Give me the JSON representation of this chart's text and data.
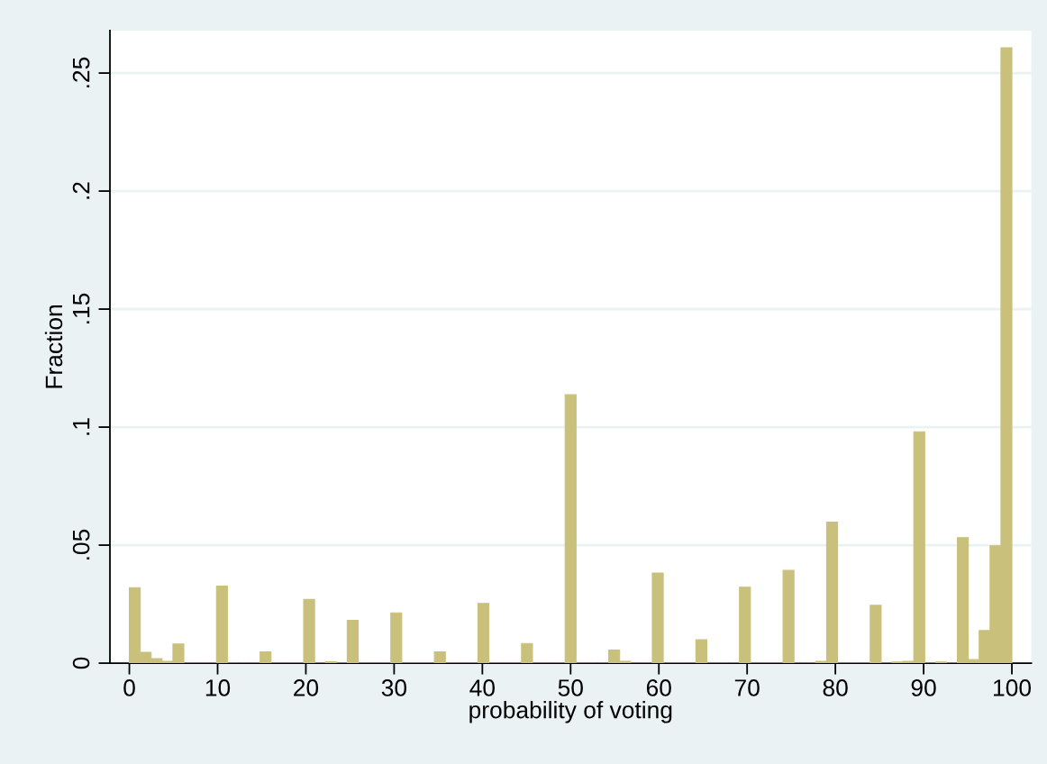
{
  "chart_data": {
    "type": "histogram",
    "xlabel": "probability of voting",
    "ylabel": "Fraction",
    "bins": [
      0,
      1.2345679,
      2.4691358,
      3.7037037,
      4.9382716,
      6.1728395,
      7.4074074,
      8.6419753,
      9.8765432,
      11.1111111,
      12.345679,
      13.5802469,
      14.8148148,
      16.0493827,
      17.2839506,
      18.5185185,
      19.7530864,
      20.9876543,
      22.2222222,
      23.4567901,
      24.691358,
      25.9259259,
      27.1604938,
      28.3950617,
      29.6296296,
      30.8641975,
      32.0987654,
      33.3333333,
      34.5679012,
      35.8024691,
      37.037037,
      38.2716049,
      39.5061728,
      40.7407407,
      41.9753086,
      43.2098765,
      44.4444444,
      45.6790123,
      46.9135802,
      48.1481481,
      49.382716,
      50.617284,
      51.8518519,
      53.0864198,
      54.3209877,
      55.5555556,
      56.7901235,
      58.0246914,
      59.2592593,
      60.4938272,
      61.7283951,
      62.962963,
      64.1975309,
      65.4320988,
      66.6666667,
      67.9012346,
      69.1358025,
      70.3703704,
      71.6049383,
      72.8395062,
      74.0740741,
      75.308642,
      76.5432099,
      77.7777778,
      79.0123457,
      80.2469136,
      81.4814815,
      82.7160494,
      83.9506173,
      85.1851852,
      86.4197531,
      87.654321,
      88.8888889,
      90.1234568,
      91.3580247,
      92.5925926,
      93.8271605,
      95.0617284,
      96.2962963,
      97.5308642,
      98.7654321,
      100
    ],
    "values": [
      0.032,
      0.0046,
      0.0019,
      0.0008,
      0.0081,
      0,
      0,
      0,
      0.0326,
      0,
      0,
      0,
      0.0048,
      0,
      0,
      0,
      0.027,
      0,
      0.0006,
      0,
      0.0181,
      0,
      0,
      0,
      0.0213,
      0,
      0,
      0,
      0.0048,
      0,
      0,
      0,
      0.0253,
      0,
      0,
      0,
      0.0083,
      0,
      0,
      0,
      0.1137,
      0,
      0,
      0,
      0.0055,
      0.0008,
      0,
      0,
      0.0382,
      0,
      0,
      0,
      0.0099,
      0,
      0,
      0,
      0.0322,
      0,
      0,
      0,
      0.0393,
      0,
      0,
      0.0008,
      0.0597,
      0,
      0,
      0,
      0.0245,
      0,
      0.0005,
      0.0008,
      0.098,
      0,
      0.0005,
      0,
      0.0532,
      0.0015,
      0.0138,
      0.0497,
      0.2607
    ],
    "color": "#c9c17b",
    "xlim": [
      -2.2,
      102.2
    ],
    "ylim": [
      0,
      0.268
    ],
    "xticks": [
      0,
      10,
      20,
      30,
      40,
      50,
      60,
      70,
      80,
      90,
      100
    ],
    "yticks": [
      {
        "value": 0,
        "label": "0"
      },
      {
        "value": 0.05,
        "label": ".05"
      },
      {
        "value": 0.1,
        "label": ".1"
      },
      {
        "value": 0.15,
        "label": ".15"
      },
      {
        "value": 0.2,
        "label": ".2"
      },
      {
        "value": 0.25,
        "label": ".25"
      }
    ],
    "grid": "y"
  }
}
